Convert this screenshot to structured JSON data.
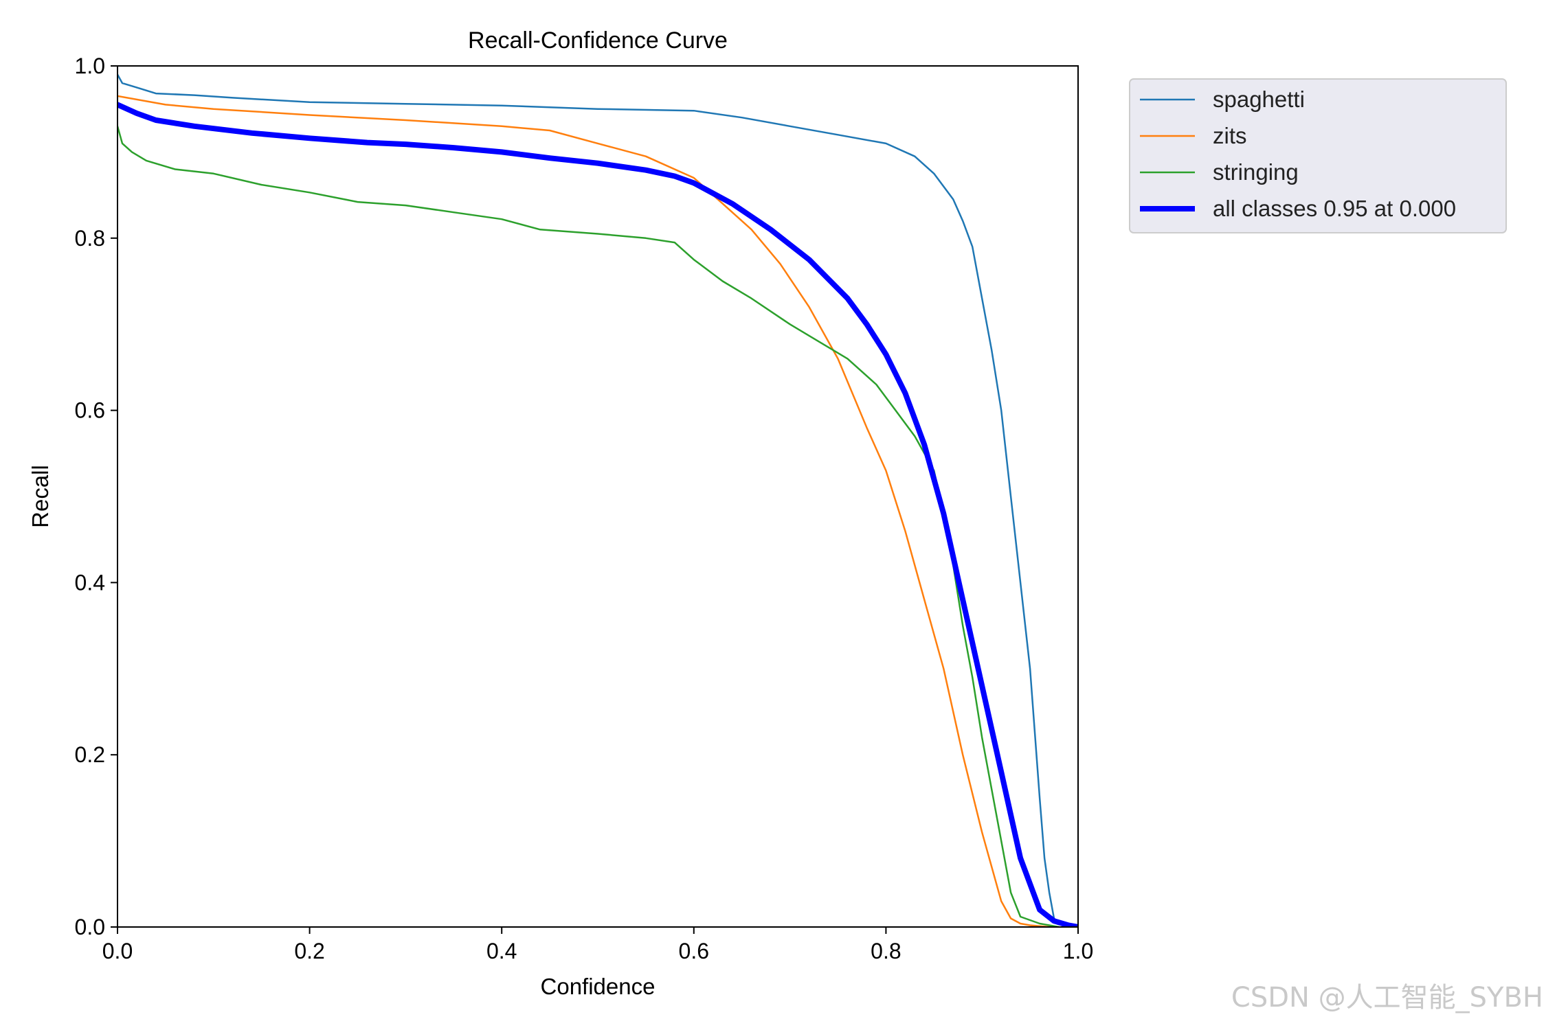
{
  "chart_data": {
    "type": "line",
    "title": "Recall-Confidence Curve",
    "xlabel": "Confidence",
    "ylabel": "Recall",
    "xlim": [
      0,
      1
    ],
    "ylim": [
      0,
      1
    ],
    "xticks": [
      "0.0",
      "0.2",
      "0.4",
      "0.6",
      "0.8",
      "1.0"
    ],
    "yticks": [
      "0.0",
      "0.2",
      "0.4",
      "0.6",
      "0.8",
      "1.0"
    ],
    "legend_position": "outside-top-right",
    "series": [
      {
        "name": "spaghetti",
        "color": "#1f77b4",
        "width": "thin",
        "x": [
          0,
          0.005,
          0.02,
          0.04,
          0.08,
          0.12,
          0.2,
          0.3,
          0.4,
          0.5,
          0.6,
          0.65,
          0.7,
          0.75,
          0.8,
          0.83,
          0.85,
          0.87,
          0.88,
          0.89,
          0.9,
          0.91,
          0.92,
          0.93,
          0.94,
          0.95,
          0.96,
          0.965,
          0.97,
          0.975,
          0.98,
          1.0
        ],
        "y": [
          0.99,
          0.98,
          0.975,
          0.968,
          0.966,
          0.963,
          0.958,
          0.956,
          0.954,
          0.95,
          0.948,
          0.94,
          0.93,
          0.92,
          0.91,
          0.895,
          0.875,
          0.845,
          0.82,
          0.79,
          0.73,
          0.67,
          0.6,
          0.5,
          0.4,
          0.3,
          0.15,
          0.08,
          0.04,
          0.01,
          0.004,
          0.0
        ]
      },
      {
        "name": "zits",
        "color": "#ff7f0e",
        "width": "thin",
        "x": [
          0,
          0.05,
          0.1,
          0.2,
          0.3,
          0.4,
          0.45,
          0.5,
          0.55,
          0.6,
          0.63,
          0.66,
          0.69,
          0.72,
          0.75,
          0.78,
          0.8,
          0.82,
          0.84,
          0.86,
          0.88,
          0.9,
          0.92,
          0.93,
          0.94,
          0.95,
          0.97,
          0.98
        ],
        "y": [
          0.965,
          0.955,
          0.95,
          0.943,
          0.937,
          0.93,
          0.925,
          0.91,
          0.895,
          0.87,
          0.84,
          0.81,
          0.77,
          0.72,
          0.66,
          0.58,
          0.53,
          0.46,
          0.38,
          0.3,
          0.2,
          0.11,
          0.03,
          0.01,
          0.004,
          0.002,
          0.0,
          0.0
        ]
      },
      {
        "name": "stringing",
        "color": "#2ca02c",
        "width": "thin",
        "x": [
          0,
          0.005,
          0.015,
          0.03,
          0.06,
          0.1,
          0.15,
          0.2,
          0.25,
          0.3,
          0.35,
          0.4,
          0.44,
          0.5,
          0.55,
          0.58,
          0.6,
          0.63,
          0.66,
          0.7,
          0.73,
          0.76,
          0.79,
          0.81,
          0.83,
          0.85,
          0.86,
          0.87,
          0.88,
          0.89,
          0.9,
          0.91,
          0.92,
          0.93,
          0.94,
          0.96,
          0.98
        ],
        "y": [
          0.93,
          0.91,
          0.9,
          0.89,
          0.88,
          0.875,
          0.862,
          0.853,
          0.842,
          0.838,
          0.83,
          0.822,
          0.81,
          0.805,
          0.8,
          0.795,
          0.775,
          0.75,
          0.73,
          0.7,
          0.68,
          0.66,
          0.63,
          0.6,
          0.57,
          0.53,
          0.48,
          0.42,
          0.35,
          0.29,
          0.22,
          0.16,
          0.1,
          0.04,
          0.012,
          0.004,
          0.0
        ]
      },
      {
        "name": "all classes 0.95 at 0.000",
        "color": "#0000ff",
        "width": "thick",
        "x": [
          0,
          0.02,
          0.04,
          0.08,
          0.14,
          0.2,
          0.26,
          0.3,
          0.35,
          0.4,
          0.45,
          0.5,
          0.55,
          0.58,
          0.6,
          0.64,
          0.68,
          0.72,
          0.76,
          0.78,
          0.8,
          0.82,
          0.84,
          0.86,
          0.88,
          0.9,
          0.92,
          0.94,
          0.96,
          0.975,
          0.99,
          1.0
        ],
        "y": [
          0.955,
          0.945,
          0.937,
          0.93,
          0.922,
          0.916,
          0.911,
          0.909,
          0.905,
          0.9,
          0.893,
          0.887,
          0.879,
          0.872,
          0.864,
          0.84,
          0.81,
          0.775,
          0.73,
          0.7,
          0.665,
          0.62,
          0.56,
          0.48,
          0.38,
          0.28,
          0.18,
          0.08,
          0.02,
          0.007,
          0.002,
          0.0
        ]
      }
    ]
  },
  "watermark": "CSDN @人工智能_SYBH"
}
